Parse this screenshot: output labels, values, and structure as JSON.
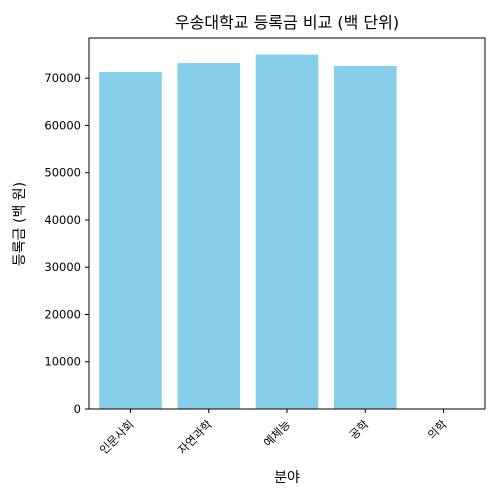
{
  "chart_data": {
    "type": "bar",
    "title": "우송대학교 등록금 비교 (백 단위)",
    "xlabel": "분야",
    "ylabel": "등록금 (백 원)",
    "categories": [
      "인문사회",
      "자연과학",
      "예체능",
      "공학",
      "의학"
    ],
    "values": [
      71300,
      73200,
      75000,
      72600,
      0
    ],
    "ylim": [
      0,
      78500
    ],
    "yticks": [
      0,
      10000,
      20000,
      30000,
      40000,
      50000,
      60000,
      70000
    ],
    "bar_color": "#87ceeb",
    "grid": false,
    "legend": "none"
  }
}
